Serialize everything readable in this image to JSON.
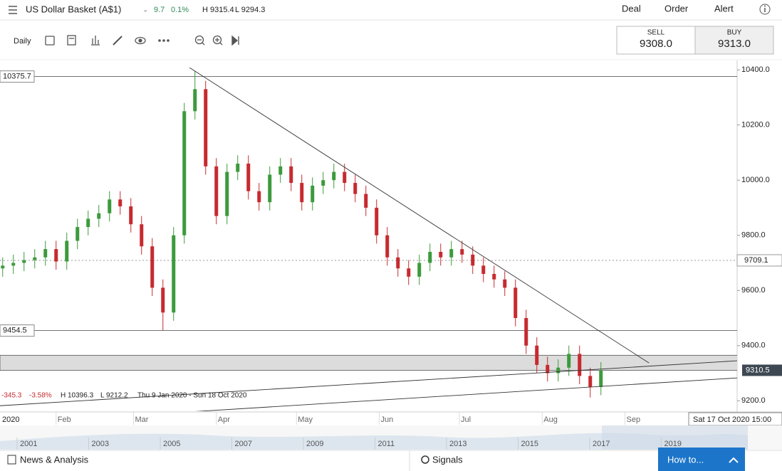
{
  "header": {
    "instrument": "US Dollar Basket (A$1)",
    "change": "9.7",
    "change_pct": "0.1%",
    "high": "H 9315.4",
    "low": "L 9294.3",
    "actions": [
      "Deal",
      "Order",
      "Alert"
    ]
  },
  "toolbar": {
    "interval": "Daily"
  },
  "quote": {
    "sell_label": "SELL",
    "sell": "9308.0",
    "buy_label": "BUY",
    "buy": "9313.0"
  },
  "chart_data": {
    "type": "candlestick",
    "x": [
      12,
      16,
      20,
      24,
      28,
      32,
      36,
      40,
      44,
      48,
      52,
      56,
      60,
      64,
      68,
      72,
      76,
      80,
      84,
      88,
      92,
      96,
      100,
      104,
      108,
      112,
      116,
      120,
      124,
      128,
      132,
      136,
      140,
      144,
      148,
      152,
      156,
      160,
      164,
      168,
      172,
      176,
      180,
      184,
      188,
      192,
      196,
      200,
      204,
      208,
      212,
      216,
      220,
      224,
      228,
      232,
      236
    ],
    "open": [
      9680,
      9690,
      9700,
      9710,
      9720,
      9750,
      9705,
      9780,
      9830,
      9860,
      9880,
      9930,
      9905,
      9840,
      9760,
      9610,
      9520,
      9800,
      10250,
      10330,
      10050,
      9870,
      10030,
      10060,
      9960,
      9920,
      10020,
      10050,
      9990,
      9920,
      9980,
      10000,
      10030,
      9990,
      9950,
      9900,
      9800,
      9720,
      9680,
      9650,
      9700,
      9740,
      9720,
      9750,
      9730,
      9690,
      9660,
      9640,
      9610,
      9500,
      9400,
      9330,
      9300,
      9320,
      9370,
      9290,
      9250
    ],
    "high": [
      9720,
      9730,
      9740,
      9750,
      9780,
      9780,
      9810,
      9860,
      9890,
      9910,
      9960,
      9960,
      9935,
      9870,
      9790,
      9640,
      9830,
      10280,
      10396,
      10360,
      10080,
      10060,
      10090,
      10090,
      9990,
      10050,
      10080,
      10080,
      10020,
      10010,
      10030,
      10060,
      10060,
      10020,
      9980,
      9930,
      9830,
      9750,
      9710,
      9730,
      9770,
      9770,
      9780,
      9780,
      9760,
      9720,
      9690,
      9670,
      9640,
      9530,
      9430,
      9360,
      9350,
      9400,
      9400,
      9320,
      9340
    ],
    "low": [
      9650,
      9660,
      9670,
      9680,
      9690,
      9675,
      9675,
      9750,
      9800,
      9830,
      9850,
      9875,
      9810,
      9730,
      9580,
      9456,
      9490,
      9770,
      10220,
      10020,
      9840,
      9840,
      10000,
      9930,
      9890,
      9890,
      9990,
      9960,
      9890,
      9890,
      9950,
      9970,
      9960,
      9920,
      9870,
      9770,
      9690,
      9650,
      9620,
      9620,
      9670,
      9690,
      9690,
      9700,
      9660,
      9630,
      9610,
      9580,
      9470,
      9370,
      9300,
      9270,
      9270,
      9290,
      9260,
      9212,
      9220
    ],
    "close": [
      9690,
      9700,
      9710,
      9720,
      9750,
      9705,
      9780,
      9830,
      9860,
      9880,
      9930,
      9905,
      9840,
      9760,
      9610,
      9520,
      9800,
      10250,
      10330,
      10050,
      9870,
      10030,
      10060,
      9960,
      9920,
      10020,
      10050,
      9990,
      9920,
      9980,
      10000,
      10030,
      9990,
      9950,
      9900,
      9800,
      9720,
      9680,
      9650,
      9700,
      9740,
      9720,
      9750,
      9730,
      9690,
      9660,
      9640,
      9610,
      9500,
      9400,
      9330,
      9300,
      9320,
      9370,
      9290,
      9250,
      9310
    ],
    "up_color": "#3c9a3c",
    "down_color": "#c62a2f",
    "xlim": [
      11,
      287
    ],
    "ylim": [
      9162,
      10434
    ],
    "year_label": "2020",
    "xticks": [
      {
        "value": 32,
        "label": "Feb"
      },
      {
        "value": 61,
        "label": "Mar"
      },
      {
        "value": 92,
        "label": "Apr"
      },
      {
        "value": 122,
        "label": "May"
      },
      {
        "value": 153,
        "label": "Jun"
      },
      {
        "value": 183,
        "label": "Jul"
      },
      {
        "value": 214,
        "label": "Aug"
      },
      {
        "value": 245,
        "label": "Sep"
      }
    ],
    "yticks": [
      {
        "value": 9200,
        "label": "9200.0"
      },
      {
        "value": 9400,
        "label": "9400.0"
      },
      {
        "value": 9600,
        "label": "9600.0"
      },
      {
        "value": 9800,
        "label": "9800.0"
      },
      {
        "value": 10000,
        "label": "10000.0"
      },
      {
        "value": 10200,
        "label": "10200.0"
      },
      {
        "value": 10400,
        "label": "10400.0"
      }
    ],
    "levels": [
      {
        "value": 10375.7,
        "label": "10375.7"
      },
      {
        "value": 9454.5,
        "label": "9454.5"
      }
    ],
    "reference": {
      "value": 9709.1,
      "label": "9709.1"
    },
    "last": {
      "value": 9310.5,
      "label": "9310.5"
    },
    "band": [
      9310,
      9365
    ],
    "trendlines": [
      {
        "x": [
          82,
          254
        ],
        "y": [
          10408,
          9337
        ]
      },
      {
        "x": [
          11,
          304
        ],
        "y": [
          9182,
          9355
        ]
      },
      {
        "x": [
          76,
          304
        ],
        "y": [
          9156,
          9293
        ]
      }
    ],
    "stats": {
      "change": "-345.3",
      "change_pct": "-3.58%",
      "high": "H 10396.3",
      "low": "L 9212.2",
      "range": "Thu 9 Jan 2020 - Sun 18 Oct 2020"
    },
    "cursor_date": "Sat 17 Oct 2020 15:00"
  },
  "navigator": {
    "years": [
      "2001",
      "2003",
      "2005",
      "2007",
      "2009",
      "2011",
      "2013",
      "2015",
      "2017",
      "2019"
    ]
  },
  "footer": {
    "news": "News & Analysis",
    "signals": "Signals",
    "help": "How to..."
  }
}
